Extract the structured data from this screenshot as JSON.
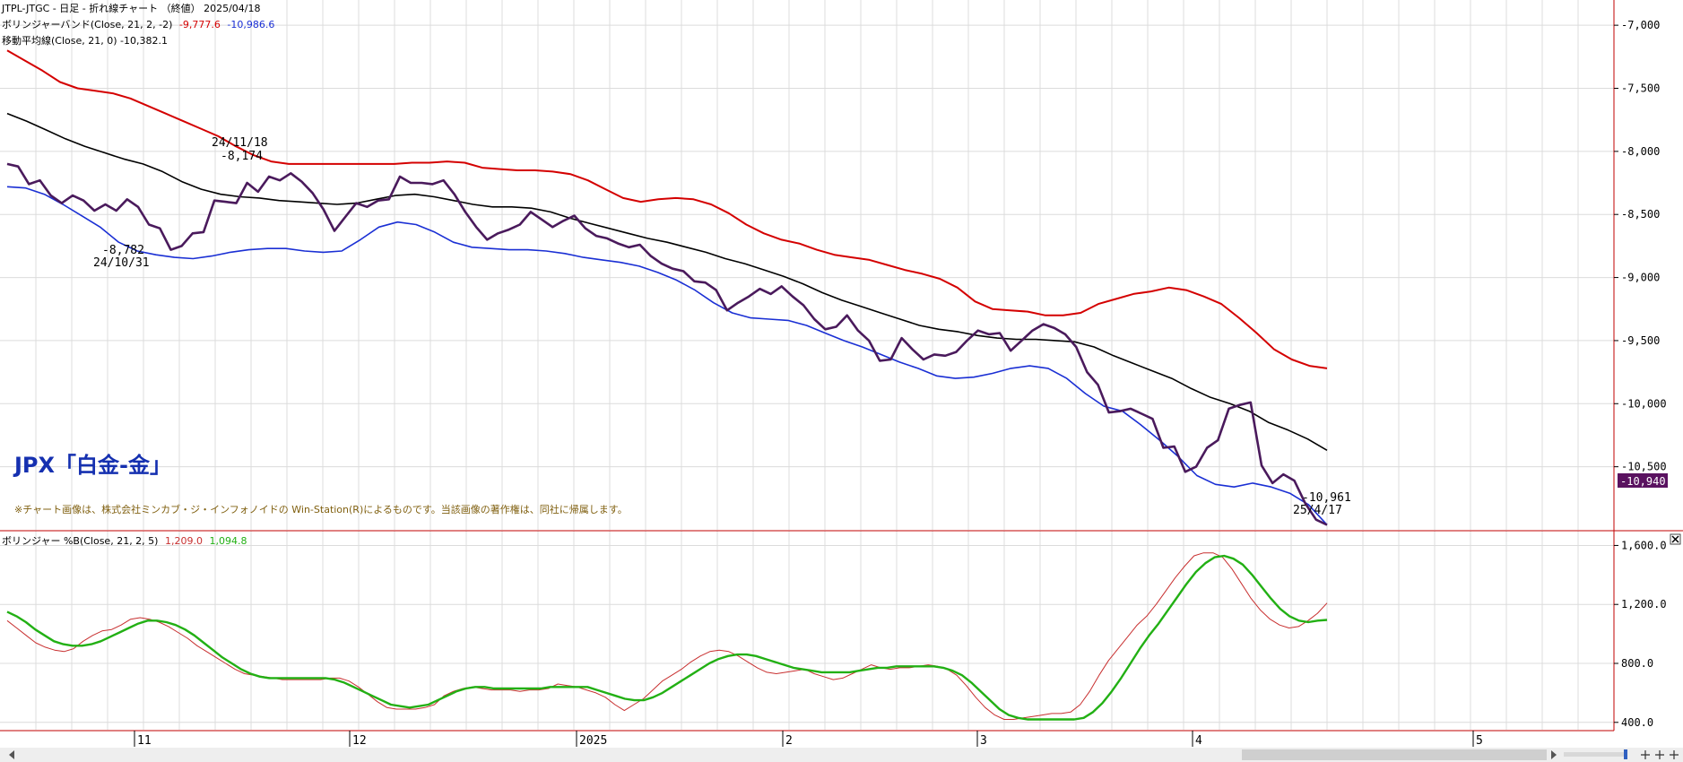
{
  "header": {
    "line1": "JTPL-JTGC - 日足 - 折れ線チャート （終値） 2025/04/18",
    "bollinger_label": "ボリンジャーバンド(Close, 21, 2, -2)",
    "bollinger_upper_value": "-9,777.6",
    "bollinger_lower_value": "-10,986.6",
    "ma_label": "移動平均線(Close, 21, 0) -10,382.1"
  },
  "overlay": {
    "title": "JPX「白金-金」",
    "note": "※チャート画像は、株式会社ミンカブ・ジ・インフォノイドの Win-Station(R)によるものです。当該画像の著作権は、同社に帰属します。"
  },
  "colors": {
    "price": "#4a1a5c",
    "upper": "#d40000",
    "lower": "#1a2fd4",
    "ma": "#000000",
    "pb_fast": "#c83030",
    "pb_slow": "#22b014",
    "grid": "#dcdcdc",
    "axis": "#c00000",
    "title": "#1530b0",
    "note": "#806010",
    "badge": "#5a1260"
  },
  "lower_panel": {
    "label": "ボリンジャー %B(Close, 21, 2, 5)",
    "v1": "1,209.0",
    "v2": "1,094.8"
  },
  "last_price_badge": "-10,940",
  "chart_data": [
    {
      "type": "line",
      "title": "",
      "ylim": [
        -11000,
        -6800
      ],
      "yticks": [
        -7000,
        -7500,
        -8000,
        -8500,
        -9000,
        -9500,
        -10000,
        -10500
      ],
      "ytick_labels": [
        "-7,000",
        "-7,500",
        "-8,000",
        "-8,500",
        "-9,000",
        "-9,500",
        "-10,000",
        "-10,500"
      ],
      "x_start_index": 0,
      "x_end_index": 140,
      "xticks": [
        {
          "index": 24,
          "label": "11"
        },
        {
          "index": 61,
          "label": "12"
        },
        {
          "index": 97,
          "label": "2025"
        },
        {
          "index": 132,
          "label": "2"
        },
        {
          "index": 165,
          "label": "3"
        },
        {
          "index": 202,
          "label": "4"
        },
        {
          "index": 250,
          "label": "5"
        }
      ],
      "series": [
        {
          "key": "close",
          "values": [
            -8100,
            -8120,
            -8260,
            -8230,
            -8350,
            -8410,
            -8350,
            -8390,
            -8470,
            -8420,
            -8470,
            -8380,
            -8440,
            -8580,
            -8610,
            -8780,
            -8750,
            -8650,
            -8640,
            -8390,
            -8400,
            -8410,
            -8250,
            -8320,
            -8200,
            -8230,
            -8174,
            -8240,
            -8330,
            -8460,
            -8630,
            -8520,
            -8410,
            -8440,
            -8390,
            -8380,
            -8200,
            -8250,
            -8250,
            -8260,
            -8230,
            -8340,
            -8480,
            -8600,
            -8700,
            -8650,
            -8620,
            -8580,
            -8480,
            -8540,
            -8600,
            -8550,
            -8510,
            -8610,
            -8670,
            -8690,
            -8730,
            -8760,
            -8740,
            -8830,
            -8890,
            -8930,
            -8950,
            -9030,
            -9040,
            -9100,
            -9260,
            -9200,
            -9150,
            -9090,
            -9130,
            -9070,
            -9150,
            -9220,
            -9330,
            -9410,
            -9390,
            -9300,
            -9420,
            -9500,
            -9660,
            -9650,
            -9480,
            -9570,
            -9650,
            -9610,
            -9620,
            -9590,
            -9500,
            -9420,
            -9450,
            -9440,
            -9580,
            -9500,
            -9420,
            -9370,
            -9400,
            -9450,
            -9550,
            -9750,
            -9850,
            -10070,
            -10060,
            -10040,
            -10080,
            -10120,
            -10350,
            -10340,
            -10540,
            -10500,
            -10350,
            -10290,
            -10040,
            -10010,
            -9990,
            -10490,
            -10630,
            -10560,
            -10610,
            -10790,
            -10920,
            -10961
          ]
        },
        {
          "key": "upper",
          "values": [
            -7200,
            -7280,
            -7360,
            -7450,
            -7500,
            -7520,
            -7540,
            -7580,
            -7640,
            -7700,
            -7760,
            -7820,
            -7880,
            -7960,
            -8030,
            -8080,
            -8100,
            -8100,
            -8100,
            -8100,
            -8100,
            -8100,
            -8100,
            -8090,
            -8090,
            -8080,
            -8090,
            -8130,
            -8140,
            -8150,
            -8150,
            -8160,
            -8180,
            -8230,
            -8300,
            -8370,
            -8400,
            -8380,
            -8370,
            -8380,
            -8420,
            -8490,
            -8580,
            -8650,
            -8700,
            -8730,
            -8780,
            -8820,
            -8840,
            -8860,
            -8900,
            -8940,
            -8970,
            -9010,
            -9080,
            -9190,
            -9250,
            -9260,
            -9270,
            -9300,
            -9300,
            -9280,
            -9210,
            -9170,
            -9130,
            -9110,
            -9080,
            -9100,
            -9150,
            -9210,
            -9320,
            -9440,
            -9570,
            -9650,
            -9700,
            -9720
          ]
        },
        {
          "key": "ma",
          "values": [
            -7700,
            -7760,
            -7830,
            -7900,
            -7960,
            -8010,
            -8060,
            -8100,
            -8160,
            -8240,
            -8300,
            -8340,
            -8360,
            -8370,
            -8390,
            -8400,
            -8410,
            -8420,
            -8410,
            -8380,
            -8350,
            -8340,
            -8360,
            -8390,
            -8420,
            -8440,
            -8440,
            -8450,
            -8480,
            -8530,
            -8570,
            -8610,
            -8650,
            -8690,
            -8720,
            -8760,
            -8800,
            -8850,
            -8890,
            -8940,
            -8990,
            -9050,
            -9120,
            -9180,
            -9230,
            -9280,
            -9330,
            -9380,
            -9410,
            -9430,
            -9460,
            -9480,
            -9490,
            -9490,
            -9500,
            -9510,
            -9550,
            -9620,
            -9680,
            -9740,
            -9800,
            -9880,
            -9950,
            -10000,
            -10060,
            -10150,
            -10210,
            -10280,
            -10370
          ]
        },
        {
          "key": "lower",
          "values": [
            -8280,
            -8290,
            -8340,
            -8420,
            -8510,
            -8600,
            -8720,
            -8790,
            -8820,
            -8840,
            -8850,
            -8830,
            -8800,
            -8780,
            -8770,
            -8770,
            -8790,
            -8800,
            -8790,
            -8700,
            -8600,
            -8560,
            -8580,
            -8640,
            -8720,
            -8760,
            -8770,
            -8780,
            -8780,
            -8790,
            -8810,
            -8840,
            -8860,
            -8880,
            -8910,
            -8960,
            -9020,
            -9100,
            -9200,
            -9280,
            -9320,
            -9330,
            -9340,
            -9380,
            -9440,
            -9500,
            -9550,
            -9610,
            -9670,
            -9720,
            -9780,
            -9800,
            -9790,
            -9760,
            -9720,
            -9700,
            -9720,
            -9800,
            -9920,
            -10020,
            -10060,
            -10170,
            -10290,
            -10420,
            -10570,
            -10640,
            -10660,
            -10630,
            -10660,
            -10710,
            -10800,
            -10960
          ]
        }
      ],
      "annotations": [
        {
          "label": "24/11/18",
          "value_label": "-8,174",
          "index": 26
        },
        {
          "label": "24/10/31",
          "value_label": "-8,782",
          "index": 15
        },
        {
          "label": "25/4/17",
          "value_label": "-10,961",
          "index": 121
        }
      ]
    },
    {
      "type": "line",
      "title": "",
      "ylim": [
        350,
        1700
      ],
      "yticks": [
        400,
        800,
        1200,
        1600
      ],
      "ytick_labels": [
        "400.0",
        "800.0",
        "1,200.0",
        "1,600.0"
      ],
      "series": [
        {
          "key": "fast",
          "values": [
            1090,
            1040,
            990,
            940,
            910,
            890,
            880,
            900,
            950,
            990,
            1020,
            1030,
            1060,
            1100,
            1110,
            1100,
            1080,
            1050,
            1010,
            970,
            920,
            880,
            840,
            800,
            760,
            730,
            720,
            710,
            700,
            690,
            690,
            690,
            690,
            690,
            700,
            700,
            680,
            640,
            590,
            540,
            500,
            490,
            490,
            490,
            500,
            520,
            580,
            610,
            630,
            640,
            630,
            620,
            620,
            620,
            610,
            620,
            620,
            630,
            660,
            650,
            640,
            620,
            600,
            570,
            520,
            480,
            520,
            560,
            620,
            680,
            720,
            760,
            810,
            850,
            880,
            890,
            880,
            850,
            810,
            770,
            740,
            730,
            740,
            750,
            760,
            730,
            710,
            690,
            700,
            730,
            760,
            790,
            770,
            760,
            770,
            770,
            780,
            790,
            780,
            760,
            720,
            650,
            570,
            500,
            450,
            420,
            420,
            430,
            440,
            450,
            460,
            460,
            470,
            520,
            610,
            720,
            820,
            900,
            980,
            1060,
            1120,
            1200,
            1290,
            1380,
            1460,
            1530,
            1550,
            1550,
            1520,
            1440,
            1340,
            1240,
            1160,
            1100,
            1060,
            1040,
            1050,
            1090,
            1140,
            1209
          ]
        },
        {
          "key": "slow",
          "values": [
            1150,
            1120,
            1080,
            1030,
            990,
            950,
            930,
            920,
            920,
            930,
            950,
            980,
            1010,
            1040,
            1070,
            1090,
            1090,
            1080,
            1060,
            1030,
            990,
            940,
            890,
            840,
            800,
            760,
            730,
            710,
            700,
            700,
            700,
            700,
            700,
            700,
            700,
            690,
            670,
            640,
            610,
            580,
            550,
            520,
            510,
            500,
            510,
            520,
            550,
            580,
            610,
            630,
            640,
            640,
            630,
            630,
            630,
            630,
            630,
            630,
            640,
            640,
            640,
            640,
            640,
            620,
            600,
            580,
            560,
            550,
            550,
            570,
            600,
            640,
            680,
            720,
            760,
            800,
            830,
            850,
            860,
            860,
            850,
            830,
            810,
            790,
            770,
            760,
            750,
            740,
            740,
            740,
            740,
            750,
            760,
            770,
            770,
            780,
            780,
            780,
            780,
            780,
            770,
            750,
            720,
            670,
            610,
            550,
            490,
            450,
            430,
            420,
            420,
            420,
            420,
            420,
            420,
            430,
            470,
            530,
            610,
            700,
            800,
            900,
            990,
            1070,
            1160,
            1250,
            1340,
            1420,
            1480,
            1520,
            1530,
            1510,
            1470,
            1400,
            1320,
            1240,
            1170,
            1120,
            1090,
            1080,
            1090,
            1094.8
          ]
        }
      ]
    }
  ]
}
